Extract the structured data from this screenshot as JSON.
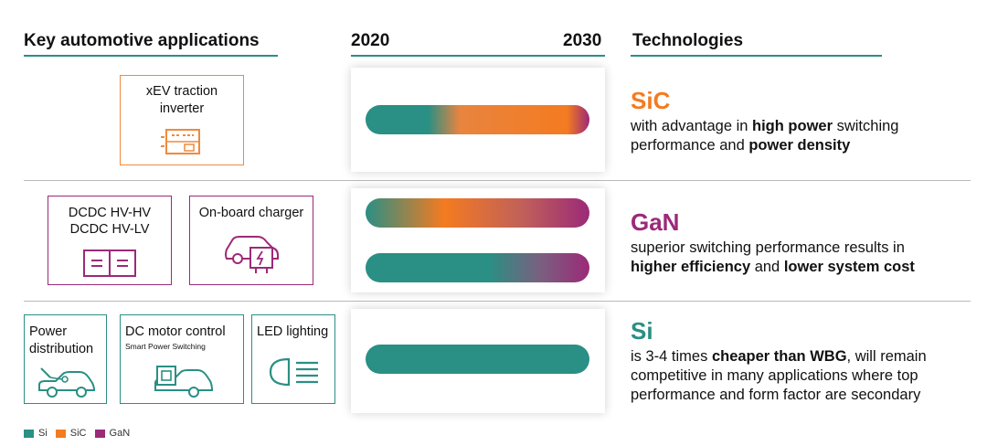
{
  "headers": {
    "applications": "Key automotive applications",
    "year_start": "2020",
    "year_end": "2030",
    "technologies": "Technologies"
  },
  "colors": {
    "si": "#2a8f84",
    "sic": "#f47b20",
    "gan": "#9b2a78"
  },
  "applications": {
    "xev": {
      "line1": "xEV traction",
      "line2": "inverter",
      "icon": "inverter-icon"
    },
    "dcdc": {
      "line1": "DCDC HV-HV",
      "line2": "DCDC HV-LV",
      "icon": "converter-icon"
    },
    "obc": {
      "label": "On-board charger",
      "icon": "charging-car-icon"
    },
    "power": {
      "line1": "Power",
      "line2": "distribution",
      "icon": "car-power-icon"
    },
    "dcmotor": {
      "label": "DC motor control",
      "sublabel": "Smart Power Switching",
      "icon": "car-motor-icon"
    },
    "led": {
      "label": "LED lighting",
      "icon": "headlight-icon"
    }
  },
  "technologies": {
    "sic": {
      "name": "SiC",
      "desc": [
        "with advantage in ",
        "high power",
        " switching",
        "performance and ",
        "power density"
      ]
    },
    "gan": {
      "name": "GaN",
      "desc": [
        "superior switching performance results in",
        "higher efficiency",
        " and ",
        "lower system cost"
      ]
    },
    "si": {
      "name": "Si",
      "desc": [
        "is 3-4 times ",
        "cheaper than WBG",
        ", will remain",
        "competitive in many applications where top",
        "performance and form factor are secondary"
      ]
    }
  },
  "legend": [
    {
      "label": "Si",
      "color": "#2a8f84"
    },
    {
      "label": "SiC",
      "color": "#f47b20"
    },
    {
      "label": "GaN",
      "color": "#9b2a78"
    }
  ]
}
